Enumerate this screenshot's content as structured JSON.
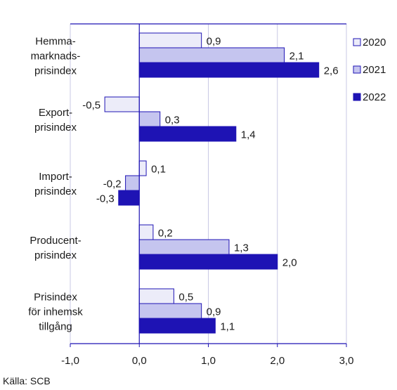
{
  "chart_data": {
    "type": "bar",
    "orientation": "horizontal",
    "categories": [
      [
        "Hemma-",
        "marknads-",
        "prisindex"
      ],
      [
        "Export-",
        "prisindex"
      ],
      [
        "Import-",
        "prisindex"
      ],
      [
        "Producent-",
        "prisindex"
      ],
      [
        "Prisindex",
        "för inhemsk",
        "tillgång"
      ]
    ],
    "series": [
      {
        "name": "2020",
        "values": [
          0.9,
          -0.5,
          0.1,
          0.2,
          0.5
        ],
        "labels": [
          "0,9",
          "-0,5",
          "0,1",
          "0,2",
          "0,5"
        ],
        "color": "#ececf9"
      },
      {
        "name": "2021",
        "values": [
          2.1,
          0.3,
          -0.2,
          1.3,
          0.9
        ],
        "labels": [
          "2,1",
          "0,3",
          "-0,2",
          "1,3",
          "0,9"
        ],
        "color": "#c5c5ef"
      },
      {
        "name": "2022",
        "values": [
          2.6,
          1.4,
          -0.3,
          2.0,
          1.1
        ],
        "labels": [
          "2,6",
          "1,4",
          "-0,3",
          "2,0",
          "1,1"
        ],
        "color": "#1e13b4"
      }
    ],
    "xlim": [
      -1.0,
      3.0
    ],
    "xticks": [
      -1.0,
      0.0,
      1.0,
      2.0,
      3.0
    ],
    "xtick_labels": [
      "-1,0",
      "0,0",
      "1,0",
      "2,0",
      "3,0"
    ],
    "grid": true,
    "legend_position": "right",
    "bar_edge_color": "#1e13b4"
  },
  "source": "Källa: SCB"
}
